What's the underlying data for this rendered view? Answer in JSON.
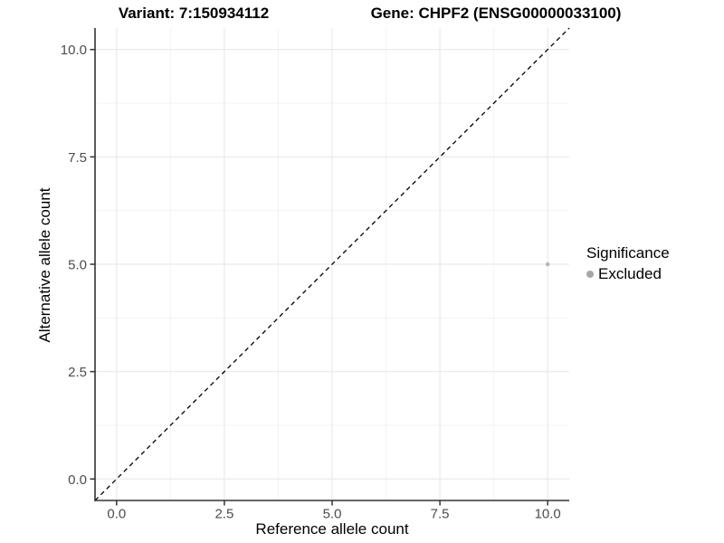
{
  "chart_data": {
    "type": "scatter",
    "title_left": "Variant: 7:150934112",
    "title_right": "Gene: CHPF2 (ENSG00000033100)",
    "xlabel": "Reference allele count",
    "ylabel": "Alternative allele count",
    "xlim": [
      0,
      10
    ],
    "ylim": [
      0,
      10
    ],
    "xticks": [
      0,
      2.5,
      5,
      7.5,
      10
    ],
    "yticks": [
      0,
      2.5,
      5,
      7.5,
      10
    ],
    "xtick_labels": [
      "0.0",
      "2.5",
      "5.0",
      "7.5",
      "10.0"
    ],
    "ytick_labels": [
      "0.0",
      "2.5",
      "5.0",
      "7.5",
      "10.0"
    ],
    "minor_ticks": [
      1.25,
      3.75,
      6.25,
      8.75
    ],
    "grid": "major+minor",
    "identity_line": {
      "slope": 1,
      "intercept": 0,
      "style": "dashed",
      "color": "#000000"
    },
    "series": [
      {
        "name": "Excluded",
        "color": "#b5b5b5",
        "points": [
          {
            "x": 10,
            "y": 5
          }
        ]
      }
    ],
    "legend": {
      "title": "Significance",
      "position": "right",
      "items": [
        {
          "label": "Excluded",
          "color": "#a6a6a6"
        }
      ]
    }
  },
  "colors": {
    "background": "#ffffff",
    "axis_line": "#333333",
    "tick_mark": "#333333",
    "tick_label": "#4d4d4d",
    "grid_major": "#eaeaea",
    "grid_minor": "#f3f3f3",
    "title_text": "#000000"
  }
}
